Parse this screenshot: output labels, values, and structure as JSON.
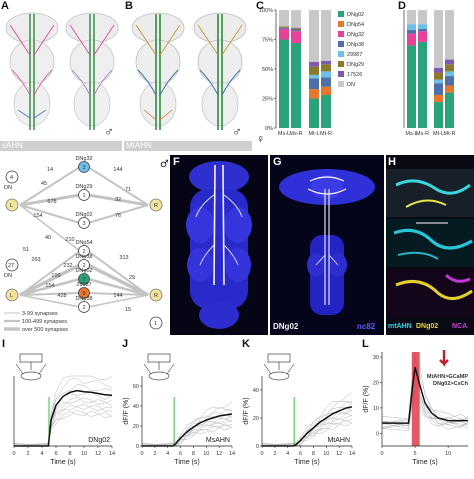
{
  "panels": {
    "A": {
      "label": "A",
      "caption": "sAHN",
      "sex": "♂"
    },
    "B": {
      "label": "B",
      "caption": "MtAHN",
      "sex": "♂"
    },
    "C": {
      "label": "C",
      "sex": "♀"
    },
    "D": {
      "label": "D"
    },
    "E": {
      "sex": "♂"
    },
    "F": {
      "label": "F"
    },
    "G": {
      "label": "G",
      "tag_left": "DNg02",
      "tag_right": "nc82"
    },
    "H": {
      "label": "H",
      "tag1": "mtAHN",
      "tag2": "DNg02",
      "tag3": "NCA"
    },
    "I": {
      "label": "I",
      "trace_label": "DNg02"
    },
    "J": {
      "label": "J",
      "trace_label": "MsAHN"
    },
    "K": {
      "label": "K",
      "trace_label": "MtAHN"
    },
    "L": {
      "label": "L",
      "line1": "MtAHN>GCaMP",
      "line2": "DNg02>CsCh"
    }
  },
  "chart_data": [
    {
      "type": "bar",
      "stacked": true,
      "panel": "C",
      "categories": [
        "Ms-L",
        "Ms-R",
        "Mt-L",
        "Mt-R"
      ],
      "ylim": [
        0,
        100
      ],
      "yticks": [
        "0%",
        "25%",
        "50%",
        "75%",
        "100%"
      ],
      "series": [
        {
          "name": "DNg02",
          "color": "#2aa27a",
          "values": [
            75,
            72,
            25,
            28
          ]
        },
        {
          "name": "DNp54",
          "color": "#e8762c",
          "values": [
            0,
            0,
            8,
            7
          ]
        },
        {
          "name": "DNg32",
          "color": "#e8419a",
          "values": [
            9,
            10,
            0,
            0
          ]
        },
        {
          "name": "DNp38",
          "color": "#4f6fa8",
          "values": [
            1,
            1,
            9,
            8
          ]
        },
        {
          "name": "29987",
          "color": "#6fbfe8",
          "values": [
            0,
            0,
            3,
            5
          ]
        },
        {
          "name": "DNg29",
          "color": "#8b7a2d",
          "values": [
            1,
            1,
            7,
            6
          ]
        },
        {
          "name": "17526",
          "color": "#7b5ab0",
          "values": [
            0,
            1,
            4,
            3
          ]
        },
        {
          "name": "DN_rest",
          "color": "#c8c8c8",
          "values": [
            14,
            15,
            44,
            43
          ]
        }
      ],
      "legend_labels": [
        "DNg02",
        "DNp54",
        "DNg32",
        "DNp38",
        "29987",
        "DNg29",
        "17526",
        "DN"
      ]
    },
    {
      "type": "bar",
      "stacked": true,
      "panel": "D",
      "categories": [
        "Ms-L",
        "Ms-R",
        "Mt-L",
        "Mt-R"
      ],
      "ylim": [
        0,
        100
      ],
      "series": [
        {
          "name": "DNg02",
          "color": "#2aa27a",
          "values": [
            70,
            73,
            22,
            30
          ]
        },
        {
          "name": "DNg32",
          "color": "#e8419a",
          "values": [
            10,
            9,
            0,
            0
          ]
        },
        {
          "name": "DNp54",
          "color": "#e8762c",
          "values": [
            0,
            0,
            6,
            6
          ]
        },
        {
          "name": "DNp38",
          "color": "#4f6fa8",
          "values": [
            3,
            2,
            10,
            8
          ]
        },
        {
          "name": "29987",
          "color": "#6fbfe8",
          "values": [
            5,
            4,
            3,
            4
          ]
        },
        {
          "name": "DNg29",
          "color": "#8b7a2d",
          "values": [
            0,
            0,
            6,
            6
          ]
        },
        {
          "name": "17526",
          "color": "#7b5ab0",
          "values": [
            0,
            0,
            4,
            4
          ]
        },
        {
          "name": "DN_rest",
          "color": "#c8c8c8",
          "values": [
            12,
            12,
            49,
            42
          ]
        }
      ]
    },
    {
      "type": "line",
      "panel": "I",
      "xlabel": "Time (s)",
      "xticks": [
        0,
        2,
        4,
        6,
        8,
        10,
        12,
        14
      ],
      "xlim": [
        0,
        14
      ],
      "ylim": [
        0,
        1.2
      ],
      "stim_time": 5,
      "mean": [
        [
          0,
          0
        ],
        [
          4.9,
          0
        ],
        [
          5.3,
          0.45
        ],
        [
          6,
          0.7
        ],
        [
          7,
          0.85
        ],
        [
          8,
          0.92
        ],
        [
          9,
          0.95
        ],
        [
          10,
          0.93
        ],
        [
          11,
          0.92
        ],
        [
          12,
          0.9
        ],
        [
          13,
          0.88
        ],
        [
          14,
          0.87
        ]
      ]
    },
    {
      "type": "line",
      "panel": "J",
      "xlabel": "Time (s)",
      "ylabel": "dF/F (%)",
      "xticks": [
        0,
        2,
        4,
        6,
        8,
        10,
        12,
        14
      ],
      "yticks": [
        0,
        20,
        40,
        60
      ],
      "xlim": [
        0,
        14
      ],
      "ylim": [
        0,
        70
      ],
      "stim_time": 5,
      "mean": [
        [
          0,
          0
        ],
        [
          4.8,
          0
        ],
        [
          5.2,
          2
        ],
        [
          6,
          8
        ],
        [
          7,
          14
        ],
        [
          8,
          19
        ],
        [
          9,
          23
        ],
        [
          10,
          26
        ],
        [
          11,
          28
        ],
        [
          12,
          30
        ],
        [
          13,
          31
        ],
        [
          14,
          32
        ]
      ]
    },
    {
      "type": "line",
      "panel": "K",
      "xlabel": "Time (s)",
      "ylabel": "dF/F (%)",
      "xticks": [
        0,
        2,
        4,
        6,
        8,
        10,
        12,
        14
      ],
      "yticks": [
        0,
        20,
        40
      ],
      "xlim": [
        0,
        14
      ],
      "ylim": [
        0,
        50
      ],
      "stim_time": 5,
      "mean": [
        [
          0,
          0
        ],
        [
          4.8,
          0
        ],
        [
          5.3,
          1
        ],
        [
          6,
          4
        ],
        [
          7,
          9
        ],
        [
          8,
          13
        ],
        [
          9,
          17
        ],
        [
          10,
          20
        ],
        [
          11,
          23
        ],
        [
          12,
          25
        ],
        [
          13,
          27
        ],
        [
          14,
          28
        ]
      ]
    },
    {
      "type": "line",
      "panel": "L",
      "xlabel": "Time (s)",
      "ylabel": "dF/F (%)",
      "xticks": [
        0,
        5,
        10
      ],
      "yticks": [
        0,
        10,
        20,
        30
      ],
      "xlim": [
        0,
        13
      ],
      "ylim": [
        -5,
        32
      ],
      "stim_window": [
        4.5,
        5.7
      ],
      "mean": [
        [
          0,
          4
        ],
        [
          4,
          4
        ],
        [
          4.6,
          18
        ],
        [
          5,
          26
        ],
        [
          5.6,
          20
        ],
        [
          6.5,
          12
        ],
        [
          7.5,
          8
        ],
        [
          8.5,
          6
        ],
        [
          10,
          5
        ],
        [
          12,
          5
        ],
        [
          13,
          5
        ]
      ]
    }
  ],
  "connectivity": {
    "left_nodes": [
      {
        "label": "DN",
        "count": "4",
        "sub": "rest"
      },
      {
        "label": "L",
        "count": ""
      },
      {
        "label": "DN",
        "count": "27",
        "sub": "rest"
      },
      {
        "label": "L",
        "count": ""
      }
    ],
    "right_nodes": [
      {
        "label": "R",
        "count": ""
      },
      {
        "label": "R",
        "count": ""
      },
      {
        "label": "DN",
        "count": "1",
        "sub": "rest"
      }
    ],
    "center_nodes": [
      {
        "name": "DNg32",
        "count": "3",
        "color": "#6fbfe8"
      },
      {
        "name": "DNg29",
        "count": "1",
        "color": "#ffffff"
      },
      {
        "name": "DNg02",
        "count": "3",
        "color": "#ffffff"
      },
      {
        "name": "DNp54",
        "count": "2",
        "color": "#ffffff"
      },
      {
        "name": "DNp38",
        "count": "2",
        "color": "#ffffff"
      },
      {
        "name": "DNg02",
        "count": "7",
        "color": "#2aa27a"
      },
      {
        "name": "29987",
        "count": "9",
        "color": "#e8762c"
      },
      {
        "name": "DNp38",
        "count": "2",
        "color": "#ffffff"
      }
    ],
    "edge_weights": [
      "144",
      "14",
      "71",
      "45",
      "32",
      "678",
      "154",
      "76",
      "210",
      "40",
      "51",
      "263",
      "232",
      "199",
      "154",
      "428",
      "313",
      "29",
      "144",
      "15"
    ],
    "legend": [
      "3-99 synapses",
      "100-499 synapses",
      "over 500 synapses"
    ]
  }
}
